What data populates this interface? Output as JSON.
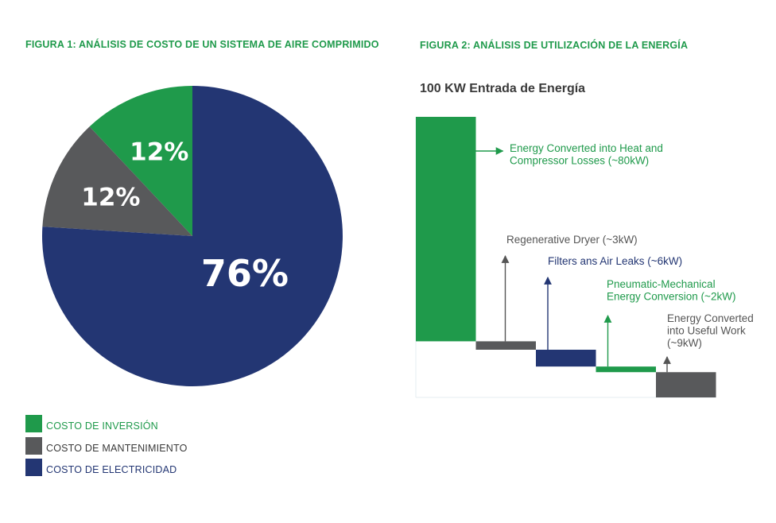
{
  "colors": {
    "green": "#1f9a4b",
    "gray": "#58595b",
    "navy": "#233673",
    "annotation_gray": "#555555"
  },
  "figures": {
    "figure1_title": "FIGURA 1: ANÁLISIS DE COSTO DE UN SISTEMA DE AIRE COMPRIMIDO",
    "figure2_title": "FIGURA 2: ANÁLISIS DE UTILIZACIÓN DE LA ENERGÍA",
    "figure2_subtitle": "100 KW Entrada de Energía"
  },
  "chart_data": [
    {
      "type": "pie",
      "title": "FIGURA 1: ANÁLISIS DE COSTO DE UN SISTEMA DE AIRE COMPRIMIDO",
      "slices": [
        {
          "label": "COSTO DE INVERSIÓN",
          "value": 12,
          "display": "12%",
          "color": "#1f9a4b"
        },
        {
          "label": "COSTO DE MANTENIMIENTO",
          "value": 12,
          "display": "12%",
          "color": "#58595b"
        },
        {
          "label": "COSTO DE ELECTRICIDAD",
          "value": 76,
          "display": "76%",
          "color": "#233673"
        }
      ],
      "legend_placement": "bottom-left"
    },
    {
      "type": "bar",
      "subtype": "waterfall",
      "title": "FIGURA 2: ANÁLISIS DE UTILIZACIÓN DE LA ENERGÍA",
      "subtitle": "100 KW Entrada de Energía",
      "total": 100,
      "steps": [
        {
          "value": 80,
          "color": "#1f9a4b",
          "label": "Energy Converted into Heat and Compressor Losses (~80kW)",
          "label_color": "#1f9a4b",
          "arrow": "right"
        },
        {
          "value": 3,
          "color": "#58595b",
          "label": "Regenerative Dryer (~3kW)",
          "label_color": "#555555",
          "arrow": "up"
        },
        {
          "value": 6,
          "color": "#233673",
          "label": "Filters ans Air Leaks (~6kW)",
          "label_color": "#233673",
          "arrow": "up"
        },
        {
          "value": 2,
          "color": "#1f9a4b",
          "label": "Pneumatic-Mechanical Energy Conversion (~2kW)",
          "label_color": "#1f9a4b",
          "arrow": "up"
        },
        {
          "value": 9,
          "color": "#58595b",
          "label": "Energy Converted into Useful Work (~9kW)",
          "label_color": "#555555",
          "arrow": "up"
        }
      ]
    }
  ]
}
